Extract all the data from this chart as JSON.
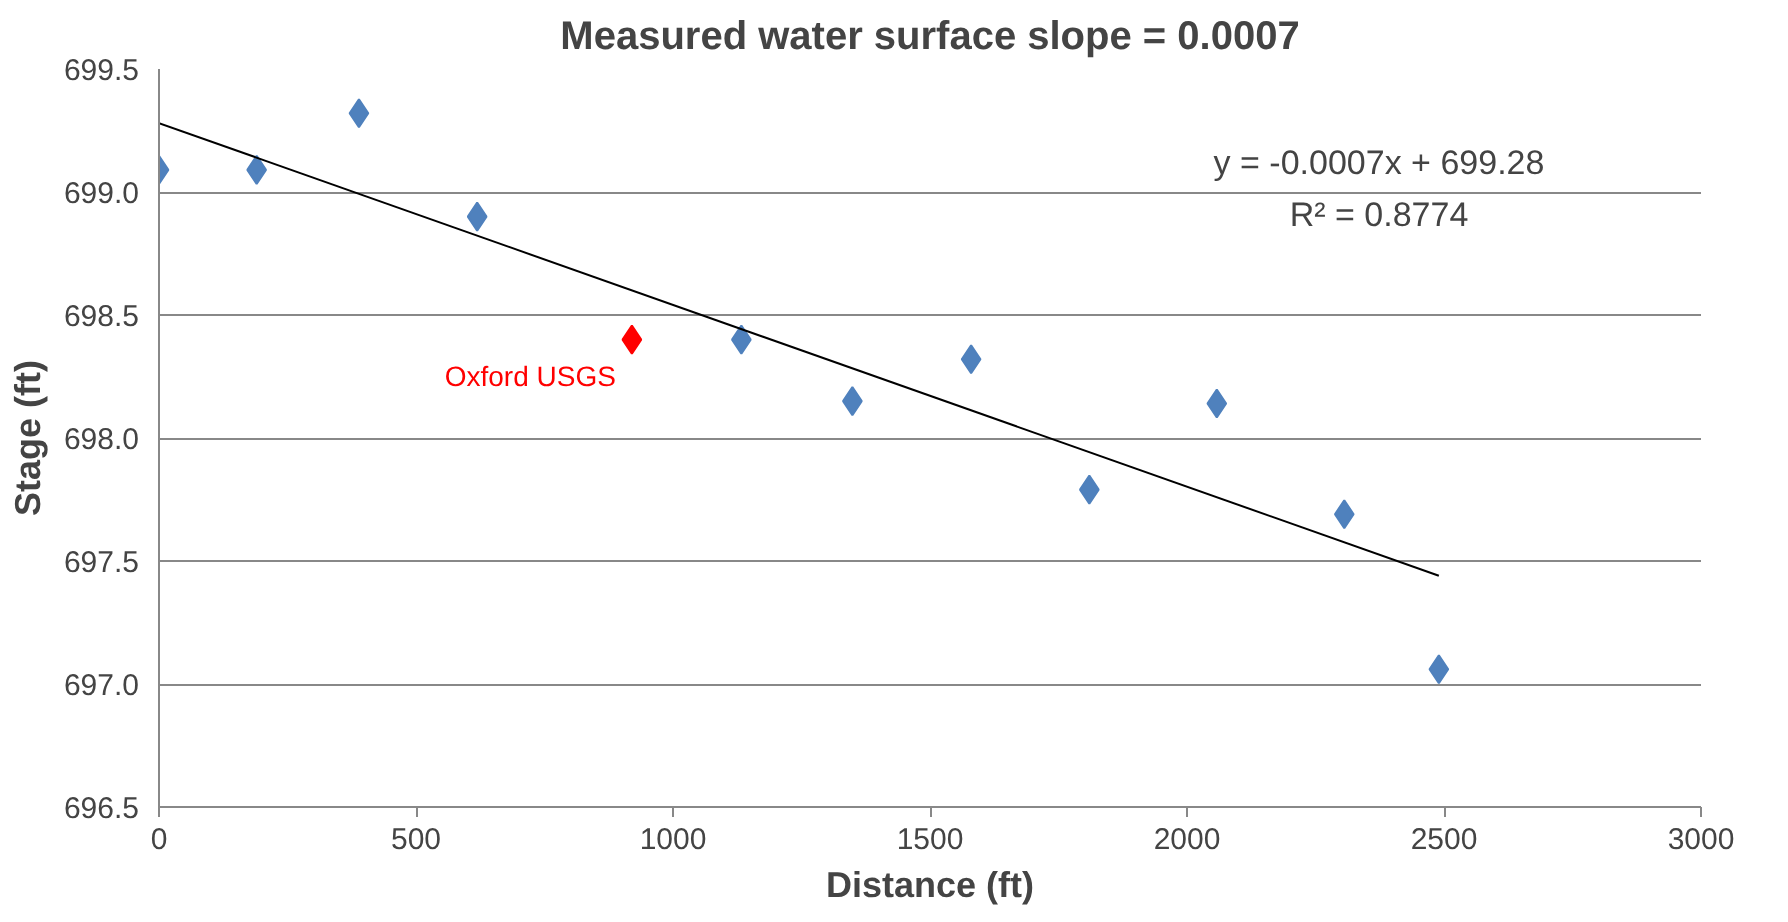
{
  "chart_data": {
    "type": "scatter",
    "title": "Measured water surface slope = 0.0007",
    "xlabel": "Distance (ft)",
    "ylabel": "Stage (ft)",
    "xlim": [
      0,
      3000
    ],
    "xticks": [
      0,
      500,
      1000,
      1500,
      2000,
      2500,
      3000
    ],
    "ylim": [
      696.5,
      699.5
    ],
    "yticks": [
      {
        "value": 696.5,
        "label": "696.5"
      },
      {
        "value": 697.0,
        "label": "697.0"
      },
      {
        "value": 697.5,
        "label": "697.5"
      },
      {
        "value": 698.0,
        "label": "698.0"
      },
      {
        "value": 698.5,
        "label": "698.5"
      },
      {
        "value": 699.0,
        "label": "699.0"
      },
      {
        "value": 699.5,
        "label": "699.5"
      }
    ],
    "grid": "y",
    "marker": "diamond",
    "series": [
      {
        "color": "#4f81bd",
        "x": [
          0,
          190,
          389,
          619,
          1133,
          1349,
          1580,
          1810,
          2058,
          2306,
          2490
        ],
        "values": [
          699.09,
          699.09,
          699.32,
          698.9,
          698.4,
          698.15,
          698.32,
          697.79,
          698.14,
          697.69,
          697.06
        ]
      },
      {
        "color": "#ff0000",
        "x": [
          920
        ],
        "values": [
          698.4
        ]
      },
      {
        "type": "line",
        "color": "#000000",
        "marker": "none",
        "x": [
          0,
          2490
        ],
        "values": [
          699.28,
          697.44
        ]
      }
    ],
    "annotations": [
      {
        "text": "Oxford USGS",
        "x": 920,
        "y": 698.4
      },
      "y = -0.0007x + 699.28",
      "R² = 0.8774"
    ]
  }
}
